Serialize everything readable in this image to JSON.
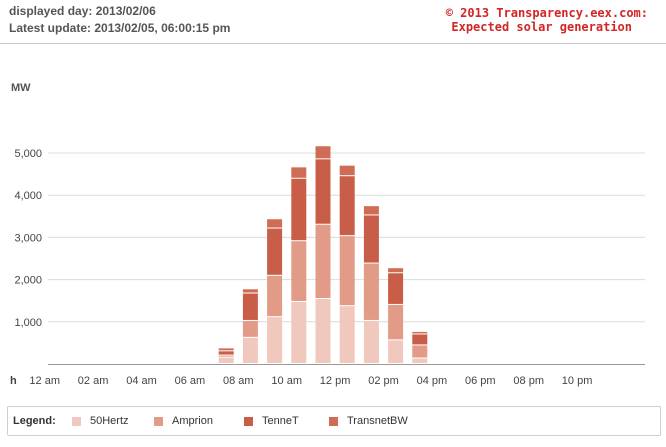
{
  "header": {
    "displayed_day": "displayed day: 2013/02/06",
    "latest_update": "Latest update: 2013/02/05, 06:00:15 pm",
    "credit_line1": "© 2013 Transparency.eex.com:",
    "credit_line2": "Expected solar generation"
  },
  "legend": {
    "title": "Legend:",
    "items": [
      {
        "label": "50Hertz",
        "color": "#f0c8bd"
      },
      {
        "label": "Amprion",
        "color": "#e29b87"
      },
      {
        "label": "TenneT",
        "color": "#c95e48"
      },
      {
        "label": "TransnetBW",
        "color": "#cf6c55"
      }
    ]
  },
  "chart_data": {
    "type": "bar",
    "stacked": true,
    "ylabel": "MW",
    "xlabel": "h",
    "ylim": [
      0,
      5400
    ],
    "yticks": [
      1000,
      2000,
      3000,
      4000,
      5000
    ],
    "ytick_labels": [
      "1,000",
      "2,000",
      "3,000",
      "4,000",
      "5,000"
    ],
    "x_tick_labels": [
      "12 am",
      "02 am",
      "04 am",
      "06 am",
      "08 am",
      "10 am",
      "12 pm",
      "02 pm",
      "04 pm",
      "06 pm",
      "08 pm",
      "10 pm"
    ],
    "categories": [
      "0",
      "1",
      "2",
      "3",
      "4",
      "5",
      "6",
      "7",
      "8",
      "9",
      "10",
      "11",
      "12",
      "13",
      "14",
      "15",
      "16",
      "17",
      "18",
      "19",
      "20",
      "21",
      "22",
      "23"
    ],
    "series": [
      {
        "name": "50Hertz",
        "color": "#f0c8bd",
        "values": [
          0,
          0,
          0,
          0,
          0,
          0,
          0,
          0,
          150,
          620,
          1110,
          1470,
          1540,
          1370,
          1020,
          560,
          130,
          0,
          0,
          0,
          0,
          0,
          0,
          0
        ]
      },
      {
        "name": "Amprion",
        "color": "#e29b87",
        "values": [
          0,
          0,
          0,
          0,
          0,
          0,
          0,
          0,
          50,
          400,
          980,
          1440,
          1760,
          1660,
          1360,
          840,
          310,
          0,
          0,
          0,
          0,
          0,
          0,
          0
        ]
      },
      {
        "name": "TenneT",
        "color": "#c95e48",
        "values": [
          0,
          0,
          0,
          0,
          0,
          0,
          0,
          0,
          100,
          650,
          1120,
          1480,
          1550,
          1420,
          1140,
          750,
          260,
          0,
          0,
          0,
          0,
          0,
          0,
          0
        ]
      },
      {
        "name": "TransnetBW",
        "color": "#cf6c55",
        "values": [
          0,
          0,
          0,
          0,
          0,
          0,
          0,
          0,
          70,
          100,
          220,
          270,
          310,
          250,
          220,
          120,
          60,
          0,
          0,
          0,
          0,
          0,
          0,
          0
        ]
      }
    ],
    "grid": true,
    "legend_position": "bottom"
  }
}
